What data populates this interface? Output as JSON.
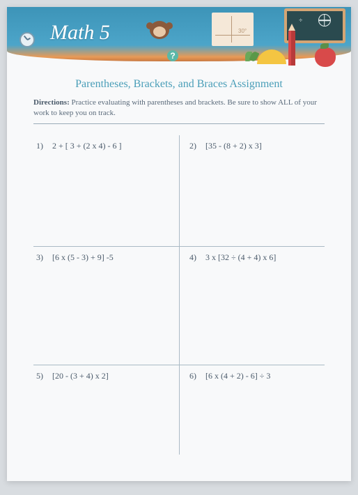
{
  "header": {
    "title": "Math 5",
    "angle_label": "30°",
    "fraction_text": "¼ · ⅓ =",
    "chalk_divide": "÷",
    "question_mark": "?"
  },
  "assignment": {
    "title": "Parentheses, Brackets, and Braces Assignment",
    "directions_label": "Directions:",
    "directions_text": " Practice evaluating with parentheses and brackets. Be sure to show ALL of your work to keep you on track."
  },
  "problems": [
    {
      "num": "1)",
      "expr": "2 + [ 3 + (2 x 4) - 6 ]"
    },
    {
      "num": "2)",
      "expr": "[35 - (8 + 2) x 3]"
    },
    {
      "num": "3)",
      "expr": "[6 x (5 - 3) + 9] -5"
    },
    {
      "num": "4)",
      "expr": "3 x [32 ÷ (4 + 4) x 6]"
    },
    {
      "num": "5)",
      "expr": "[20 - (3 + 4) x 2]"
    },
    {
      "num": "6)",
      "expr": "[6 x (4 + 2) - 6] ÷ 3"
    }
  ],
  "colors": {
    "banner_top": "#3d94b8",
    "banner_bottom": "#e89a56",
    "title_color": "#4a9eb8",
    "text_color": "#5a6a7a",
    "border_color": "#aabac5"
  }
}
